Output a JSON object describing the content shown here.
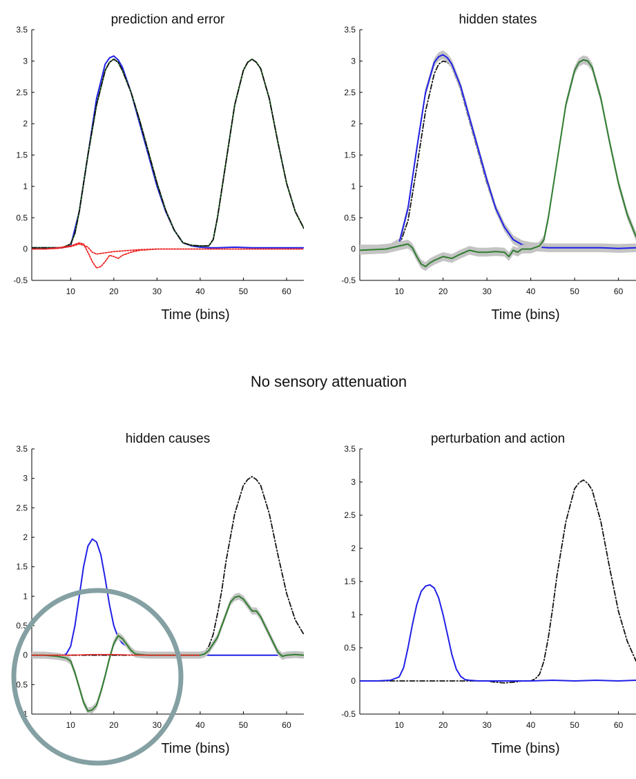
{
  "figure": {
    "suptitle": "No sensory attenuation",
    "colors": {
      "blue": "#1f1fe6",
      "green": "#2f7d2f",
      "black": "#111111",
      "red": "#ee2222",
      "band": "#c4c4c4",
      "circle": "#84a0a3"
    }
  },
  "chart_data": [
    {
      "type": "line",
      "title": "prediction and error",
      "xlabel": "Time  (bins)",
      "ylabel": "",
      "xlim": [
        1,
        64
      ],
      "ylim": [
        -0.5,
        3.5
      ],
      "xticks": [
        "10",
        "20",
        "30",
        "40",
        "50",
        "60"
      ],
      "yticks": [
        "-0.5",
        "0",
        "0.5",
        "1",
        "1.5",
        "2",
        "2.5",
        "3",
        "3.5"
      ],
      "series": [
        {
          "color": "blue",
          "style": "solid",
          "x": [
            1,
            5,
            8,
            10,
            12,
            14,
            16,
            18,
            19,
            20,
            21,
            22,
            24,
            26,
            28,
            30,
            32,
            34,
            36,
            38,
            40,
            42,
            44,
            48,
            52,
            56,
            60,
            64
          ],
          "y": [
            0.02,
            0.02,
            0.02,
            0.05,
            0.6,
            1.5,
            2.4,
            2.95,
            3.05,
            3.08,
            3.02,
            2.9,
            2.5,
            2.0,
            1.5,
            1.0,
            0.6,
            0.3,
            0.1,
            0.05,
            0.03,
            0.02,
            0.02,
            0.03,
            0.02,
            0.02,
            0.02,
            0.02
          ]
        },
        {
          "color": "green",
          "style": "solid",
          "x": [
            1,
            5,
            8,
            10,
            11,
            12,
            14,
            16,
            18,
            19,
            20,
            21,
            22,
            24,
            26,
            28,
            30,
            32,
            34,
            36,
            38,
            40,
            42,
            43,
            44,
            46,
            48,
            50,
            51,
            52,
            53,
            54,
            56,
            58,
            60,
            62,
            64
          ],
          "y": [
            0.02,
            0.02,
            0.02,
            0.08,
            0.25,
            0.6,
            1.5,
            2.3,
            2.85,
            2.98,
            3.03,
            2.98,
            2.85,
            2.5,
            2.05,
            1.55,
            1.05,
            0.62,
            0.3,
            0.1,
            0.06,
            0.05,
            0.05,
            0.15,
            0.5,
            1.4,
            2.3,
            2.85,
            2.98,
            3.03,
            2.98,
            2.88,
            2.4,
            1.7,
            1.05,
            0.6,
            0.33
          ]
        },
        {
          "color": "black",
          "style": "dashdot",
          "x": [
            1,
            5,
            8,
            10,
            11,
            12,
            14,
            16,
            18,
            19,
            20,
            21,
            22,
            24,
            26,
            28,
            30,
            32,
            34,
            36,
            38,
            40,
            42,
            43,
            44,
            46,
            48,
            50,
            51,
            52,
            53,
            54,
            56,
            58,
            60,
            62,
            64
          ],
          "y": [
            0.02,
            0.02,
            0.02,
            0.08,
            0.25,
            0.6,
            1.5,
            2.3,
            2.85,
            2.98,
            3.03,
            2.98,
            2.85,
            2.5,
            2.05,
            1.55,
            1.05,
            0.62,
            0.3,
            0.1,
            0.06,
            0.05,
            0.05,
            0.15,
            0.5,
            1.4,
            2.3,
            2.85,
            2.98,
            3.03,
            2.98,
            2.88,
            2.4,
            1.7,
            1.05,
            0.6,
            0.33
          ]
        },
        {
          "color": "red",
          "style": "dotted",
          "x": [
            1,
            4,
            7,
            10,
            12,
            13,
            14,
            15,
            16,
            17,
            18,
            19,
            20,
            21,
            22,
            24,
            26,
            30,
            35,
            40,
            45,
            50,
            55,
            60,
            64
          ],
          "y": [
            0.0,
            0.0,
            0.02,
            0.05,
            0.1,
            0.08,
            -0.05,
            -0.2,
            -0.3,
            -0.28,
            -0.2,
            -0.1,
            -0.12,
            -0.15,
            -0.1,
            -0.05,
            -0.02,
            0.0,
            0.0,
            0.0,
            0.0,
            0.0,
            0.0,
            0.0,
            0.0
          ]
        },
        {
          "color": "red",
          "style": "dotted",
          "x": [
            1,
            4,
            7,
            10,
            12,
            13,
            14,
            15,
            16,
            18,
            20,
            22,
            24,
            26,
            30,
            35,
            40,
            45,
            50,
            55,
            60,
            64
          ],
          "y": [
            0.0,
            0.0,
            0.01,
            0.04,
            0.08,
            0.06,
            0.03,
            -0.05,
            -0.08,
            -0.06,
            -0.04,
            -0.03,
            -0.02,
            -0.01,
            0.0,
            0.0,
            0.0,
            0.0,
            0.0,
            0.0,
            0.0,
            0.0
          ]
        }
      ]
    },
    {
      "type": "line",
      "title": "hidden states",
      "xlabel": "Time  (bins)",
      "ylabel": "",
      "xlim": [
        1,
        64
      ],
      "ylim": [
        -0.5,
        3.5
      ],
      "xticks": [
        "10",
        "20",
        "30",
        "40",
        "50",
        "60"
      ],
      "yticks": [
        "-0.5",
        "0",
        "0.5",
        "1",
        "1.5",
        "2",
        "2.5",
        "3",
        "3.5"
      ],
      "series": [
        {
          "color": "black",
          "style": "dashdot",
          "x": [
            1,
            5,
            8,
            10,
            12,
            14,
            16,
            18,
            19,
            20,
            21,
            22,
            24,
            26,
            28,
            30,
            32,
            34,
            36,
            38,
            40,
            42,
            44,
            48,
            52,
            56,
            60,
            64
          ],
          "y": [
            0.0,
            0.0,
            0.0,
            0.05,
            0.45,
            1.3,
            2.2,
            2.8,
            2.95,
            3.0,
            2.98,
            2.9,
            2.55,
            2.05,
            1.55,
            1.05,
            0.62,
            0.32,
            0.14,
            0.06,
            0.03,
            0.02,
            0.01,
            0.0,
            0.0,
            0.0,
            0.0,
            0.0
          ]
        },
        {
          "color": "blue",
          "style": "solid",
          "band": 0.07,
          "x": [
            1,
            5,
            8,
            10,
            12,
            14,
            16,
            18,
            19,
            20,
            21,
            22,
            24,
            26,
            28,
            30,
            32,
            34,
            36,
            38,
            40,
            42,
            44,
            48,
            52,
            56,
            60,
            64
          ],
          "y": [
            0.0,
            0.0,
            0.02,
            0.1,
            0.65,
            1.6,
            2.5,
            2.98,
            3.07,
            3.1,
            3.05,
            2.95,
            2.6,
            2.1,
            1.6,
            1.1,
            0.65,
            0.35,
            0.15,
            0.07,
            0.04,
            0.03,
            0.02,
            0.02,
            0.02,
            0.02,
            0.01,
            0.02
          ]
        },
        {
          "color": "green",
          "style": "solid",
          "band": 0.07,
          "x": [
            1,
            4,
            7,
            10,
            12,
            13,
            14,
            15,
            16,
            17,
            18,
            20,
            22,
            24,
            26,
            28,
            30,
            32,
            34,
            35,
            36,
            37,
            38,
            40,
            42,
            43,
            44,
            46,
            48,
            50,
            51,
            52,
            53,
            54,
            56,
            58,
            60,
            62,
            64
          ],
          "y": [
            -0.02,
            -0.01,
            0.0,
            0.05,
            0.08,
            0.02,
            -0.12,
            -0.24,
            -0.28,
            -0.22,
            -0.18,
            -0.12,
            -0.15,
            -0.08,
            -0.02,
            -0.05,
            -0.05,
            -0.04,
            -0.05,
            -0.12,
            -0.02,
            -0.05,
            0.0,
            0.0,
            0.05,
            0.15,
            0.5,
            1.4,
            2.3,
            2.85,
            2.98,
            3.02,
            3.0,
            2.9,
            2.4,
            1.7,
            1.05,
            0.55,
            0.2
          ]
        }
      ]
    },
    {
      "type": "line",
      "title": "hidden causes",
      "xlabel": "Time  (bins)",
      "ylabel": "",
      "xlim": [
        1,
        64
      ],
      "ylim": [
        -1,
        3.5
      ],
      "xticks": [
        "10",
        "20",
        "30",
        "40",
        "50",
        "60"
      ],
      "yticks": [
        "-1",
        "-0.5",
        "0",
        "0.5",
        "1",
        "1.5",
        "2",
        "2.5",
        "3",
        "3.5"
      ],
      "series": [
        {
          "color": "blue",
          "style": "solid",
          "x": [
            1,
            5,
            8,
            9,
            10,
            11,
            12,
            13,
            14,
            15,
            16,
            17,
            18,
            19,
            20,
            21,
            22,
            23,
            24,
            25,
            26,
            28,
            30,
            32,
            35,
            40,
            45,
            50,
            55,
            60,
            64
          ],
          "y": [
            0,
            0,
            0.0,
            0.02,
            0.15,
            0.5,
            1.0,
            1.5,
            1.85,
            1.97,
            1.92,
            1.7,
            1.3,
            0.85,
            0.5,
            0.3,
            0.2,
            0.15,
            0.1,
            0.05,
            0.02,
            0,
            0,
            0,
            0,
            0,
            0,
            0,
            0,
            0,
            0
          ]
        },
        {
          "color": "black",
          "style": "dashdot",
          "x": [
            1,
            10,
            20,
            30,
            38,
            40,
            41,
            42,
            43,
            44,
            45,
            46,
            48,
            50,
            51,
            52,
            53,
            54,
            56,
            58,
            60,
            62,
            64
          ],
          "y": [
            0,
            0,
            0,
            0,
            0,
            0.01,
            0.05,
            0.15,
            0.35,
            0.7,
            1.1,
            1.6,
            2.4,
            2.88,
            2.98,
            3.03,
            2.98,
            2.88,
            2.4,
            1.7,
            1.05,
            0.6,
            0.35
          ]
        },
        {
          "color": "green",
          "style": "solid",
          "band": 0.06,
          "x": [
            1,
            4,
            7,
            9,
            10,
            11,
            12,
            13,
            14,
            15,
            16,
            17,
            18,
            19,
            20,
            21,
            22,
            23,
            24,
            25,
            26,
            28,
            30,
            32,
            35,
            38,
            40,
            41,
            42,
            44,
            46,
            47,
            48,
            49,
            50,
            51,
            52,
            53,
            54,
            55,
            56,
            57,
            58,
            59,
            60,
            62,
            64
          ],
          "y": [
            0.0,
            0.0,
            -0.02,
            -0.05,
            -0.1,
            -0.3,
            -0.55,
            -0.8,
            -0.95,
            -0.93,
            -0.85,
            -0.62,
            -0.35,
            -0.05,
            0.2,
            0.33,
            0.28,
            0.18,
            0.08,
            0.02,
            0.01,
            0.0,
            0.0,
            0.0,
            0.0,
            0.0,
            0.0,
            0.02,
            0.08,
            0.3,
            0.7,
            0.9,
            0.98,
            1.0,
            0.95,
            0.85,
            0.75,
            0.75,
            0.65,
            0.5,
            0.35,
            0.2,
            0.05,
            -0.02,
            0.0,
            0.01,
            0.0
          ]
        },
        {
          "color": "red",
          "style": "dotted",
          "x": [
            1,
            10,
            15,
            20,
            25,
            30,
            35,
            40
          ],
          "y": [
            0,
            0,
            0.01,
            0.01,
            0,
            0,
            0,
            0
          ]
        }
      ]
    },
    {
      "type": "line",
      "title": "perturbation and action",
      "xlabel": "Time  (bins)",
      "ylabel": "",
      "xlim": [
        1,
        64
      ],
      "ylim": [
        -0.5,
        3.5
      ],
      "xticks": [
        "10",
        "20",
        "30",
        "40",
        "50",
        "60"
      ],
      "yticks": [
        "-0.5",
        "0",
        "0.5",
        "1",
        "1.5",
        "2",
        "2.5",
        "3",
        "3.5"
      ],
      "series": [
        {
          "color": "black",
          "style": "dashdot",
          "x": [
            1,
            10,
            20,
            30,
            32,
            34,
            36,
            38,
            40,
            41,
            42,
            43,
            44,
            45,
            46,
            48,
            50,
            51,
            52,
            53,
            54,
            56,
            58,
            60,
            62,
            64
          ],
          "y": [
            0,
            0,
            0,
            0,
            -0.02,
            -0.03,
            -0.02,
            0,
            0,
            0.03,
            0.1,
            0.3,
            0.65,
            1.1,
            1.6,
            2.4,
            2.9,
            2.99,
            3.03,
            2.98,
            2.88,
            2.4,
            1.7,
            1.05,
            0.6,
            0.3
          ]
        },
        {
          "color": "blue",
          "style": "solid",
          "x": [
            1,
            5,
            8,
            10,
            11,
            12,
            13,
            14,
            15,
            16,
            17,
            18,
            19,
            20,
            21,
            22,
            23,
            24,
            25,
            26,
            28,
            30,
            35,
            40,
            45,
            50,
            55,
            60,
            64
          ],
          "y": [
            0,
            0,
            0.01,
            0.06,
            0.2,
            0.5,
            0.85,
            1.15,
            1.35,
            1.43,
            1.45,
            1.4,
            1.25,
            1.0,
            0.7,
            0.4,
            0.18,
            0.07,
            0.02,
            0.01,
            0,
            0,
            0,
            0,
            0.01,
            0,
            0.01,
            0,
            0.01
          ]
        }
      ]
    }
  ]
}
